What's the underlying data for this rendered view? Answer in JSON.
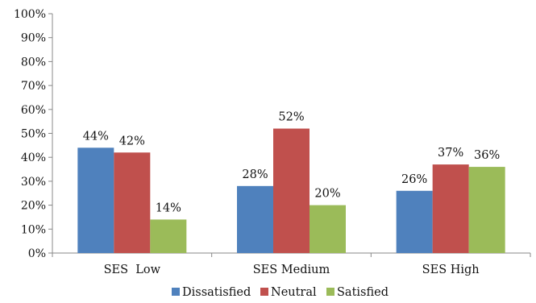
{
  "chart_data": {
    "type": "bar",
    "categories": [
      "SES  Low",
      "SES Medium",
      "SES High"
    ],
    "series": [
      {
        "name": "Dissatisfied",
        "values": [
          44,
          28,
          26
        ],
        "labels": [
          "44%",
          "28%",
          "26%"
        ],
        "color": "#4F81BD"
      },
      {
        "name": "Neutral",
        "values": [
          42,
          52,
          37
        ],
        "labels": [
          "42%",
          "52%",
          "37%"
        ],
        "color": "#C0504D"
      },
      {
        "name": "Satisfied",
        "values": [
          14,
          20,
          36
        ],
        "labels": [
          "14%",
          "20%",
          "36%"
        ],
        "color": "#9BBB59"
      }
    ],
    "ylim": [
      0,
      100
    ],
    "yticks": [
      "0%",
      "10%",
      "20%",
      "30%",
      "40%",
      "50%",
      "60%",
      "70%",
      "80%",
      "90%",
      "100%"
    ],
    "grid": false,
    "legend_position": "bottom",
    "title": "",
    "xlabel": "",
    "ylabel": ""
  }
}
